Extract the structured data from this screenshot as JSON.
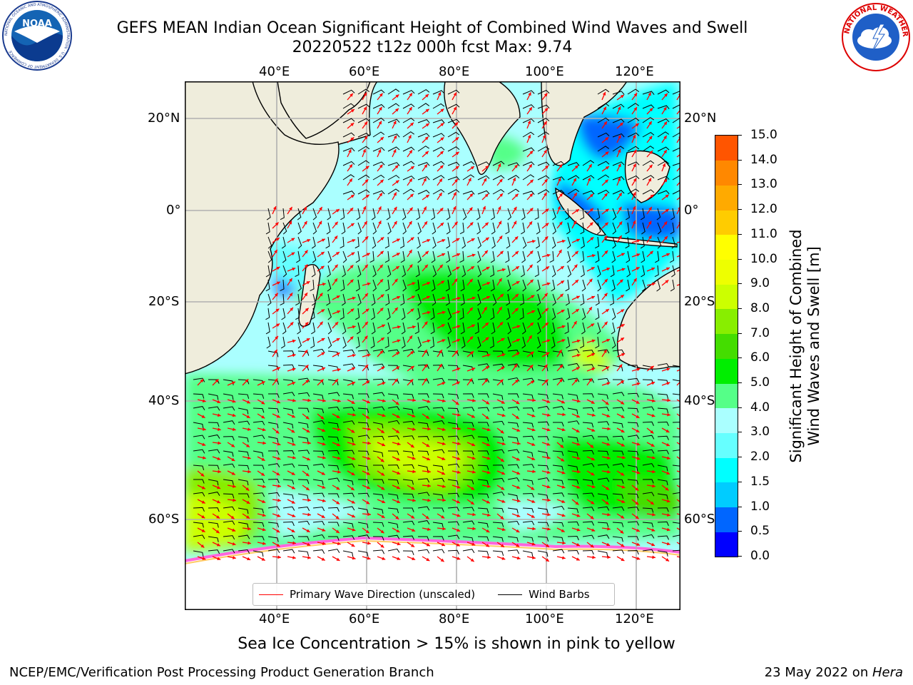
{
  "title": {
    "line1": "GEFS MEAN Indian Ocean Significant Height of Combined Wind Waves and Swell",
    "line2": "20220522 t12z 000h fcst   Max: 9.74"
  },
  "logos": {
    "noaa_text": "NOAA",
    "noaa_ring": "NATIONAL OCEANIC AND ATMOSPHERIC ADMINISTRATION · U.S. DEPARTMENT OF COMMERCE",
    "nws_ring": "NATIONAL WEATHER SERVICE"
  },
  "map": {
    "lon_labels": [
      "40°E",
      "60°E",
      "80°E",
      "100°E",
      "120°E"
    ],
    "lat_labels_left": [
      "20°N",
      "0°",
      "20°S",
      "40°S",
      "60°S"
    ],
    "lat_labels_right": [
      "20°N",
      "0°",
      "20°S",
      "40°S",
      "60°S"
    ],
    "legend": {
      "wave_label": "Primary Wave Direction (unscaled)",
      "barb_label": "Wind Barbs",
      "wave_color": "#ff0000",
      "barb_color": "#000000"
    },
    "colors": {
      "land": "#efeddc",
      "ice_free_water_low": "#aaffff",
      "sea_ice": "#ffffff",
      "grid": "#b0b0b0"
    }
  },
  "colorbar": {
    "title_line1": "Significant Height of Combined",
    "title_line2": "Wind Waves and Swell [m]",
    "levels": [
      "0.0",
      "0.5",
      "1.0",
      "1.5",
      "2.0",
      "3.0",
      "4.0",
      "5.0",
      "6.0",
      "7.0",
      "8.0",
      "9.0",
      "10.0",
      "11.0",
      "12.0",
      "13.0",
      "14.0",
      "15.0"
    ],
    "colors": [
      "#0000ff",
      "#0066ff",
      "#00ccff",
      "#00ffff",
      "#66ffff",
      "#aaffff",
      "#55ff88",
      "#00ee00",
      "#44dd00",
      "#88ee00",
      "#ccff00",
      "#eeff00",
      "#ffff00",
      "#ffcc00",
      "#ffaa00",
      "#ff8800",
      "#ff5500",
      "#ff2200",
      "#ff0000"
    ]
  },
  "footer": {
    "note": "Sea Ice Concentration > 15% is shown in pink to yellow",
    "left": "NCEP/EMC/Verification Post Processing Product Generation Branch",
    "right_date": "23 May 2022 on ",
    "right_machine": "Hera"
  }
}
